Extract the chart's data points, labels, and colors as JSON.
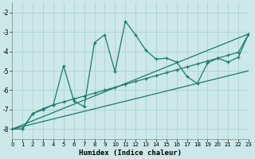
{
  "xlabel": "Humidex (Indice chaleur)",
  "bg_color": "#cce8e8",
  "grid_color": "#aad4d0",
  "line_color": "#1a7a6e",
  "xmin": 0,
  "xmax": 23,
  "ymin": -8.5,
  "ymax": -1.5,
  "yticks": [
    -8,
    -7,
    -6,
    -5,
    -4,
    -3,
    -2
  ],
  "xticks": [
    0,
    1,
    2,
    3,
    4,
    5,
    6,
    7,
    8,
    9,
    10,
    11,
    12,
    13,
    14,
    15,
    16,
    17,
    18,
    19,
    20,
    21,
    22,
    23
  ],
  "jagged_x": [
    0,
    1,
    2,
    3,
    4,
    5,
    6,
    7,
    8,
    9,
    10,
    11,
    12,
    13,
    14,
    15,
    16,
    17,
    18,
    19,
    20,
    21,
    22,
    23
  ],
  "jagged_y": [
    -8.0,
    -8.0,
    -7.2,
    -7.0,
    -6.75,
    -4.75,
    -6.55,
    -6.85,
    -3.55,
    -3.15,
    -5.05,
    -2.45,
    -3.15,
    -3.95,
    -4.4,
    -4.35,
    -4.55,
    -5.3,
    -5.65,
    -4.6,
    -4.35,
    -4.55,
    -4.3,
    -3.1
  ],
  "smooth_x": [
    0,
    1,
    2,
    3,
    4,
    5,
    6,
    7,
    8,
    9,
    10,
    11,
    12,
    13,
    14,
    15,
    16,
    17,
    18,
    19,
    20,
    21,
    22,
    23
  ],
  "smooth_y": [
    -8.0,
    -8.0,
    -7.2,
    -6.95,
    -6.75,
    -6.6,
    -6.45,
    -6.3,
    -6.15,
    -6.0,
    -5.85,
    -5.7,
    -5.55,
    -5.4,
    -5.25,
    -5.1,
    -4.95,
    -4.8,
    -4.65,
    -4.5,
    -4.35,
    -4.2,
    -4.05,
    -3.1
  ],
  "line1_x": [
    0,
    23
  ],
  "line1_y": [
    -8.0,
    -3.1
  ],
  "line2_x": [
    0,
    23
  ],
  "line2_y": [
    -8.0,
    -5.0
  ]
}
